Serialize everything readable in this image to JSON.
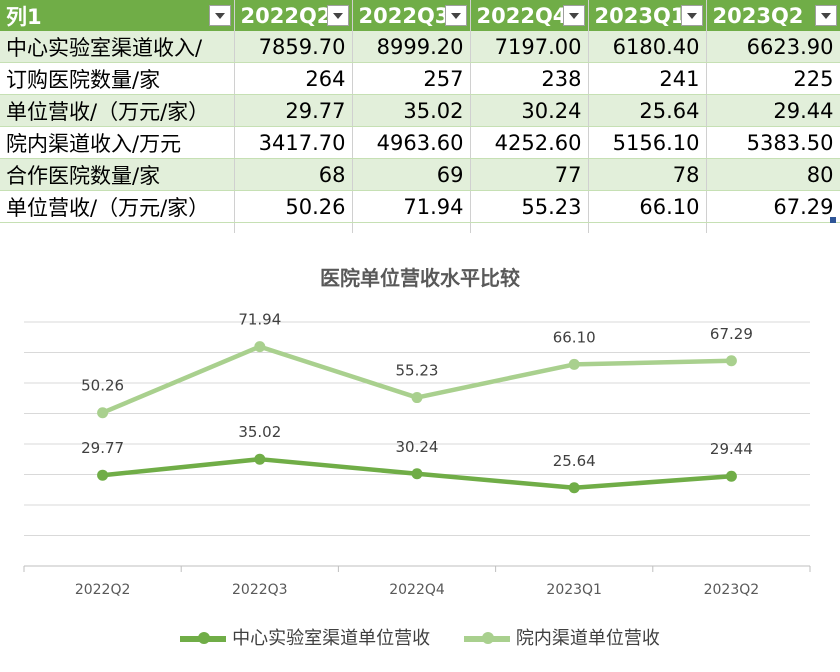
{
  "sheet": {
    "headers": [
      "列1",
      "2022Q2",
      "2022Q3",
      "2022Q4",
      "2023Q1",
      "2023Q2"
    ],
    "rows": [
      [
        "中心实验室渠道收入/",
        "7859.70",
        "8999.20",
        "7197.00",
        "6180.40",
        "6623.90"
      ],
      [
        "订购医院数量/家",
        "264",
        "257",
        "238",
        "241",
        "225"
      ],
      [
        "单位营收/（万元/家）",
        "29.77",
        "35.02",
        "30.24",
        "25.64",
        "29.44"
      ],
      [
        "院内渠道收入/万元",
        "3417.70",
        "4963.60",
        "4252.60",
        "5156.10",
        "5383.50"
      ],
      [
        "合作医院数量/家",
        "68",
        "69",
        "77",
        "78",
        "80"
      ],
      [
        "单位营收/（万元/家）",
        "50.26",
        "71.94",
        "55.23",
        "66.10",
        "67.29"
      ]
    ],
    "header_color": "#70ad47",
    "band_color": "#e2efda"
  },
  "chart_data": {
    "type": "line",
    "title": "医院单位营收水平比较",
    "categories": [
      "2022Q2",
      "2022Q3",
      "2022Q4",
      "2023Q1",
      "2023Q2"
    ],
    "series": [
      {
        "name": "中心实验室渠道单位营收",
        "values": [
          29.77,
          35.02,
          30.24,
          25.64,
          29.44
        ],
        "color": "#70ad47",
        "labels": [
          "29.77",
          "35.02",
          "30.24",
          "25.64",
          "29.44"
        ]
      },
      {
        "name": "院内渠道单位营收",
        "values": [
          50.26,
          71.94,
          55.23,
          66.1,
          67.29
        ],
        "color": "#a9d08e",
        "labels": [
          "50.26",
          "71.94",
          "55.23",
          "66.10",
          "67.29"
        ]
      }
    ],
    "ylim": [
      0,
      80
    ],
    "grid": true,
    "legend": "bottom"
  }
}
